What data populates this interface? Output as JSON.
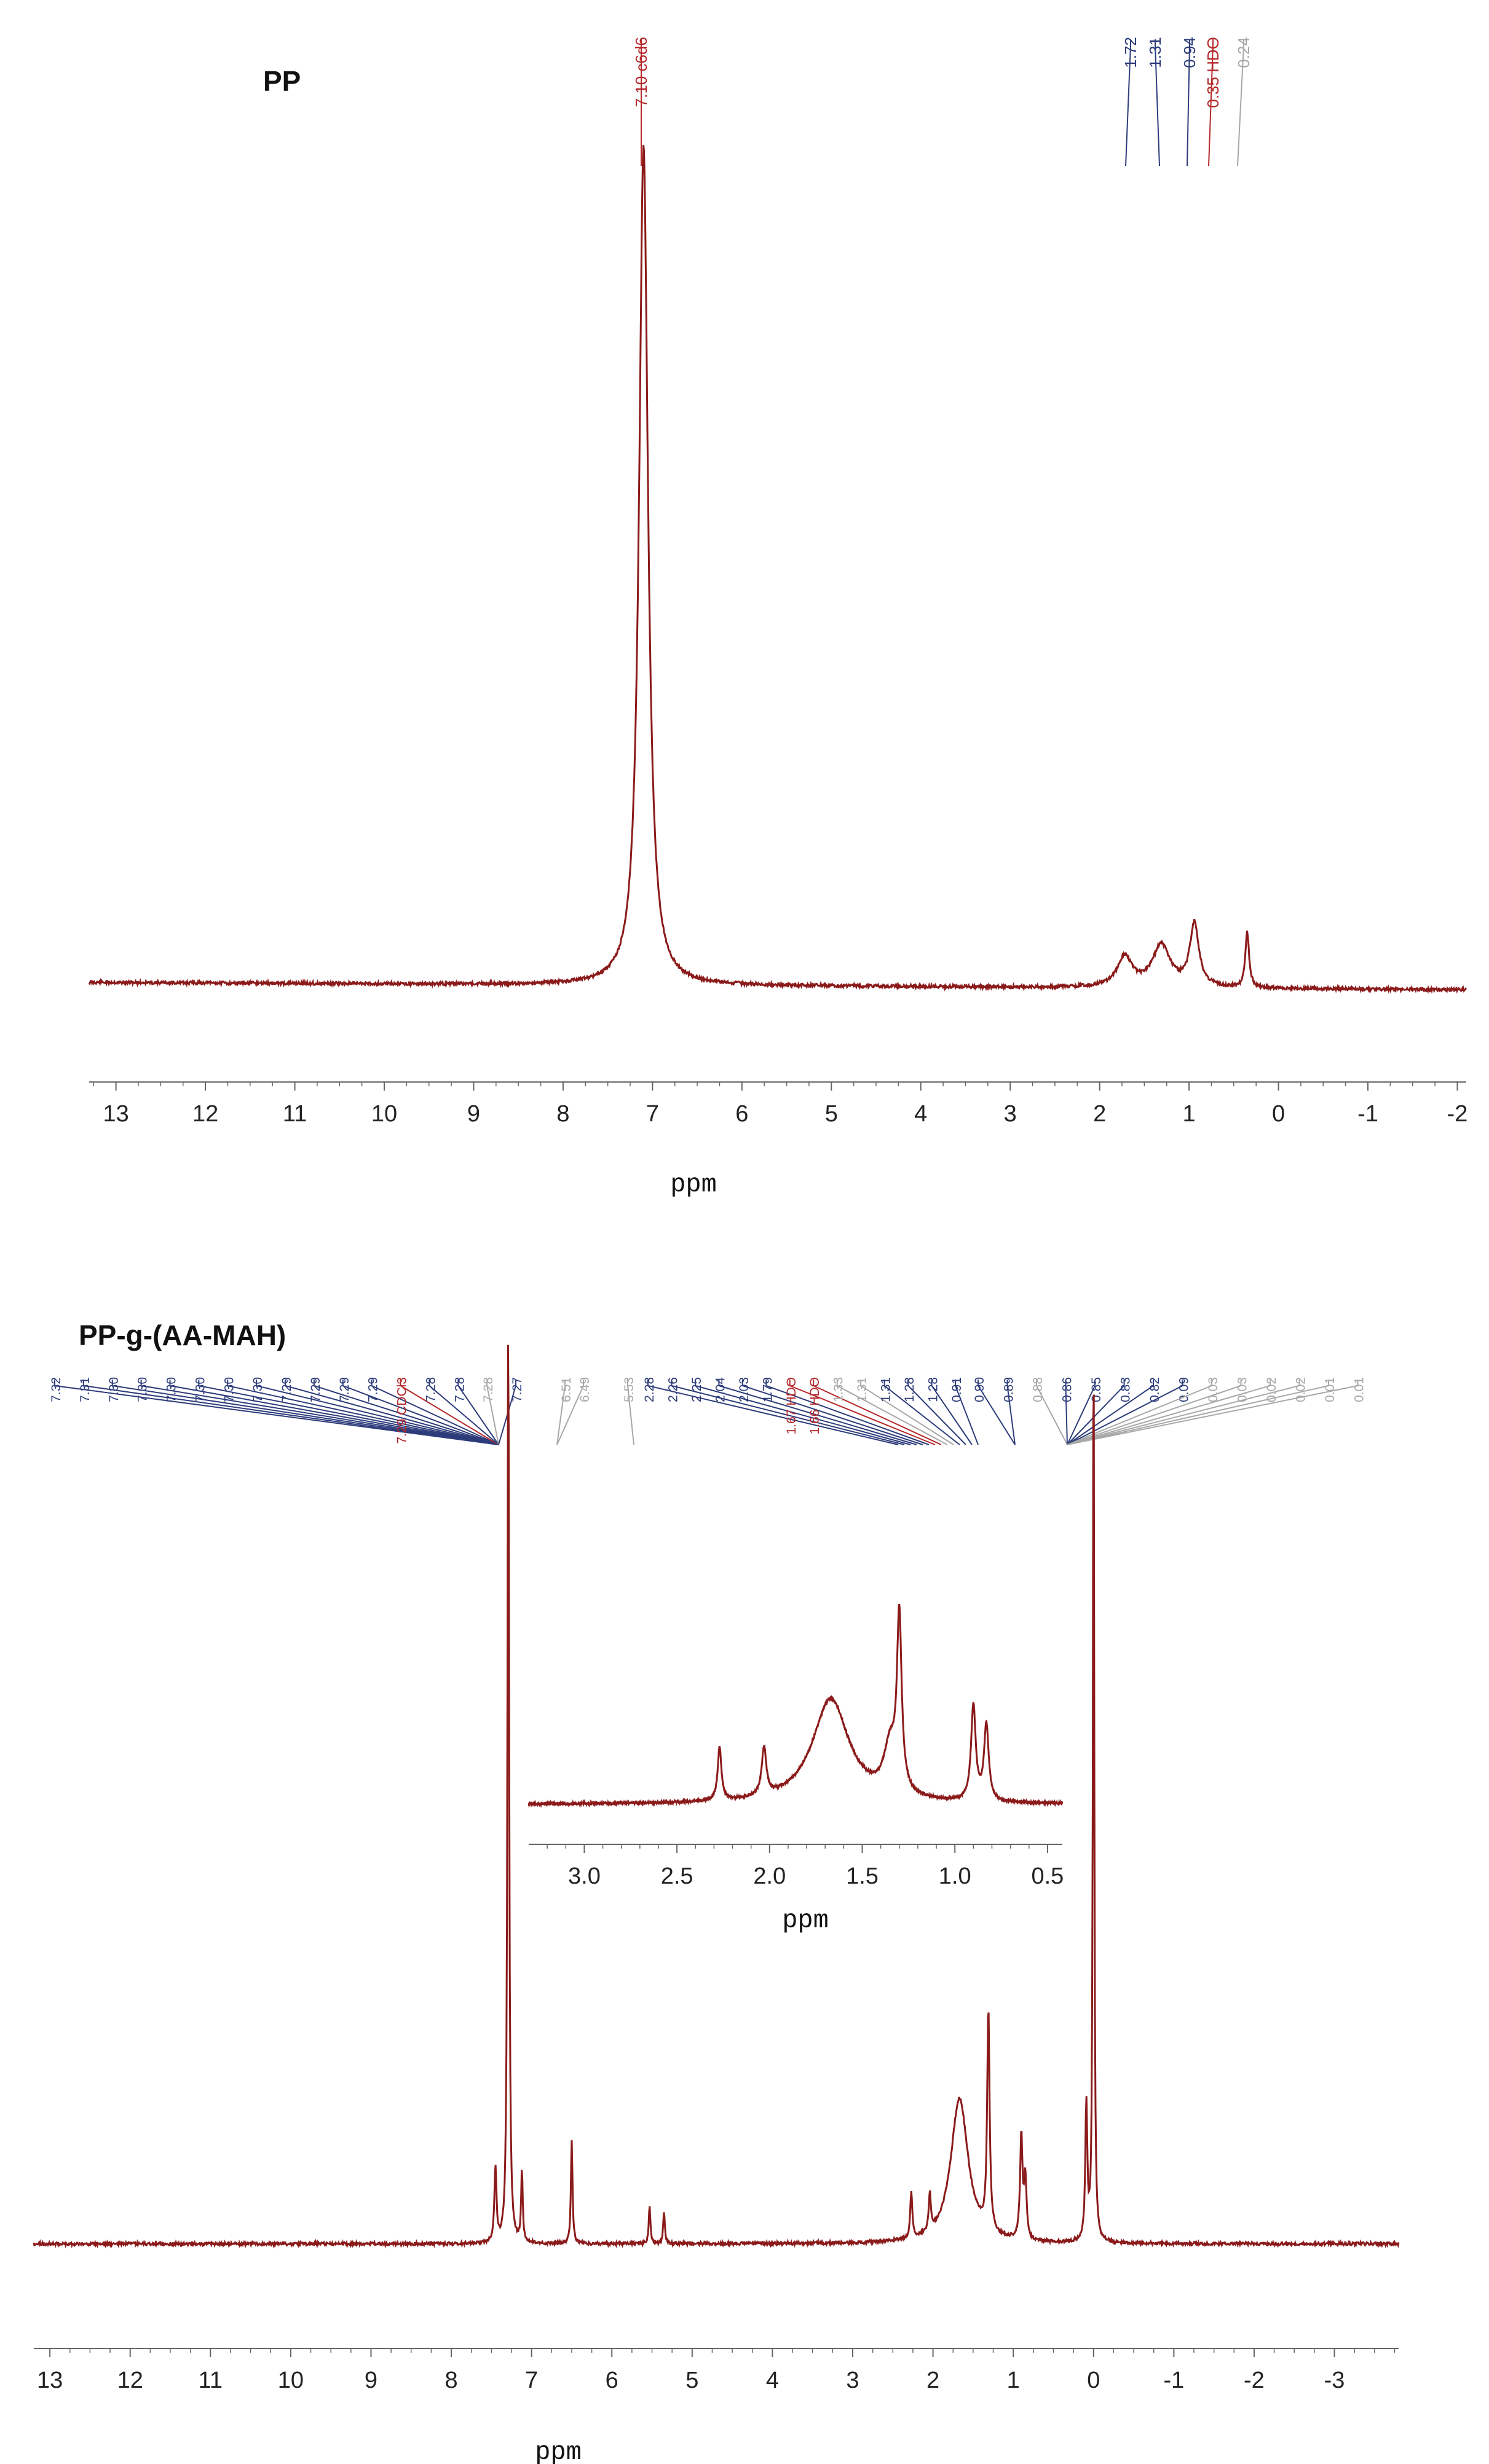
{
  "colors": {
    "spectrum": "#8b1a1a",
    "axis": "#666666",
    "label_blue": "#2d3c7a",
    "label_red": "#b5282a",
    "label_grey": "#a8a8a8"
  },
  "chart_data": [
    {
      "type": "line",
      "title": "PP",
      "xlabel": "ppm",
      "ylabel": "",
      "xlim": [
        13.3,
        -2.1
      ],
      "x_reversed": true,
      "grid": false,
      "xticks": [
        "13",
        "12",
        "11",
        "10",
        "9",
        "8",
        "7",
        "6",
        "5",
        "4",
        "3",
        "2",
        "1",
        "0",
        "-1",
        "-2"
      ],
      "peaks": [
        {
          "ppm": 7.1,
          "height": 1.0,
          "width": 0.06
        },
        {
          "ppm": 1.72,
          "height": 0.036,
          "width": 0.1
        },
        {
          "ppm": 1.31,
          "height": 0.05,
          "width": 0.12
        },
        {
          "ppm": 0.94,
          "height": 0.075,
          "width": 0.06
        },
        {
          "ppm": 0.35,
          "height": 0.066,
          "width": 0.025
        }
      ],
      "peak_labels": [
        {
          "text": "7.10 c6d6",
          "color": "red"
        },
        {
          "text": "1.72",
          "color": "blue"
        },
        {
          "text": "1.31",
          "color": "blue"
        },
        {
          "text": "0.94",
          "color": "blue"
        },
        {
          "text": "0.35 HDO",
          "color": "red"
        },
        {
          "text": "0.24",
          "color": "grey"
        }
      ]
    },
    {
      "type": "line",
      "title": "PP-g-(AA-MAH)",
      "xlabel": "ppm",
      "ylabel": "",
      "xlim": [
        13.2,
        -3.8
      ],
      "x_reversed": true,
      "grid": false,
      "xticks": [
        "13",
        "12",
        "11",
        "10",
        "9",
        "8",
        "7",
        "6",
        "5",
        "4",
        "3",
        "2",
        "1",
        "0",
        "-1",
        "-2",
        "-3"
      ],
      "peaks": [
        {
          "ppm": 7.29,
          "height": 1.0,
          "width": 0.012
        },
        {
          "ppm": 7.45,
          "height": 0.08,
          "width": 0.015
        },
        {
          "ppm": 7.12,
          "height": 0.075,
          "width": 0.012
        },
        {
          "ppm": 6.5,
          "height": 0.11,
          "width": 0.012
        },
        {
          "ppm": 5.53,
          "height": 0.04,
          "width": 0.012
        },
        {
          "ppm": 5.35,
          "height": 0.035,
          "width": 0.012
        },
        {
          "ppm": 2.27,
          "height": 0.05,
          "width": 0.015
        },
        {
          "ppm": 2.04,
          "height": 0.04,
          "width": 0.015
        },
        {
          "ppm": 1.67,
          "height": 0.155,
          "width": 0.13
        },
        {
          "ppm": 1.31,
          "height": 0.235,
          "width": 0.018
        },
        {
          "ppm": 0.9,
          "height": 0.11,
          "width": 0.018
        },
        {
          "ppm": 0.85,
          "height": 0.065,
          "width": 0.018
        },
        {
          "ppm": 0.09,
          "height": 0.145,
          "width": 0.015
        },
        {
          "ppm": 0.0,
          "height": 1.0,
          "width": 0.01
        }
      ],
      "peak_labels": [
        {
          "text": "7.32",
          "color": "blue"
        },
        {
          "text": "7.31",
          "color": "blue"
        },
        {
          "text": "7.30",
          "color": "blue"
        },
        {
          "text": "7.30",
          "color": "blue"
        },
        {
          "text": "7.30",
          "color": "blue"
        },
        {
          "text": "7.30",
          "color": "blue"
        },
        {
          "text": "7.30",
          "color": "blue"
        },
        {
          "text": "7.30",
          "color": "blue"
        },
        {
          "text": "7.29",
          "color": "blue"
        },
        {
          "text": "7.29",
          "color": "blue"
        },
        {
          "text": "7.29",
          "color": "blue"
        },
        {
          "text": "7.29",
          "color": "blue"
        },
        {
          "text": "7.29 CDCl3",
          "color": "red"
        },
        {
          "text": "7.28",
          "color": "blue"
        },
        {
          "text": "7.28",
          "color": "blue"
        },
        {
          "text": "7.28",
          "color": "grey"
        },
        {
          "text": "7.27",
          "color": "blue"
        },
        {
          "text": "6.51",
          "color": "grey"
        },
        {
          "text": "6.49",
          "color": "grey"
        },
        {
          "text": "5.53",
          "color": "grey"
        },
        {
          "text": "2.28",
          "color": "blue"
        },
        {
          "text": "2.26",
          "color": "blue"
        },
        {
          "text": "2.25",
          "color": "blue"
        },
        {
          "text": "2.04",
          "color": "blue"
        },
        {
          "text": "2.03",
          "color": "blue"
        },
        {
          "text": "1.79",
          "color": "blue"
        },
        {
          "text": "1.67 HDO",
          "color": "red"
        },
        {
          "text": "1.66 HDO",
          "color": "red"
        },
        {
          "text": "1.33",
          "color": "grey"
        },
        {
          "text": "1.31",
          "color": "grey"
        },
        {
          "text": "1.31",
          "color": "blue"
        },
        {
          "text": "1.28",
          "color": "blue"
        },
        {
          "text": "1.28",
          "color": "blue"
        },
        {
          "text": "0.91",
          "color": "blue"
        },
        {
          "text": "0.90",
          "color": "blue"
        },
        {
          "text": "0.89",
          "color": "blue"
        },
        {
          "text": "0.88",
          "color": "grey"
        },
        {
          "text": "0.86",
          "color": "blue"
        },
        {
          "text": "0.85",
          "color": "blue"
        },
        {
          "text": "0.83",
          "color": "blue"
        },
        {
          "text": "0.82",
          "color": "blue"
        },
        {
          "text": "0.09",
          "color": "blue"
        },
        {
          "text": "0.03",
          "color": "grey"
        },
        {
          "text": "0.03",
          "color": "grey"
        },
        {
          "text": "0.02",
          "color": "grey"
        },
        {
          "text": "0.02",
          "color": "grey"
        },
        {
          "text": "0.01",
          "color": "grey"
        },
        {
          "text": "0.01",
          "color": "grey"
        }
      ],
      "inset": {
        "type": "line",
        "xlabel": "ppm",
        "xlim": [
          3.3,
          0.42
        ],
        "x_reversed": true,
        "xticks": [
          "3.0",
          "2.5",
          "2.0",
          "1.5",
          "1.0",
          "0.5"
        ],
        "peaks": [
          {
            "ppm": 2.27,
            "height": 0.28,
            "width": 0.012
          },
          {
            "ppm": 2.03,
            "height": 0.25,
            "width": 0.015
          },
          {
            "ppm": 1.67,
            "height": 0.55,
            "width": 0.12
          },
          {
            "ppm": 1.35,
            "height": 0.25,
            "width": 0.04
          },
          {
            "ppm": 1.3,
            "height": 0.9,
            "width": 0.015
          },
          {
            "ppm": 0.9,
            "height": 0.5,
            "width": 0.015
          },
          {
            "ppm": 0.83,
            "height": 0.4,
            "width": 0.015
          }
        ]
      }
    }
  ]
}
